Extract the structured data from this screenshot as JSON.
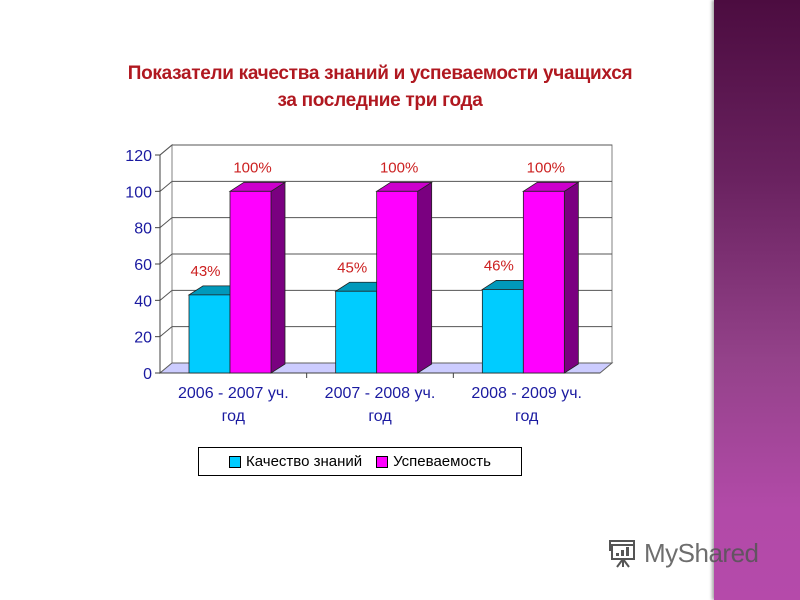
{
  "slide": {
    "title_line1": "Показатели качества знаний  и успеваемости учащихся",
    "title_line2": "за последние три года",
    "accent_colors": {
      "title": "#b01820",
      "side_band_top": "#4c0c40",
      "side_band_bottom": "#b54aaa"
    }
  },
  "watermark": {
    "icon": "presentation-board-icon",
    "text": "MyShared"
  },
  "legend": {
    "items": [
      {
        "label": "Качество знаний",
        "color": "#00ccff"
      },
      {
        "label": "Успеваемость",
        "color": "#ff00ff"
      }
    ]
  },
  "chart_data": {
    "type": "bar",
    "subtype": "3d-clustered-column",
    "title": "Показатели качества знаний  и успеваемости учащихся за последние три года",
    "categories": [
      "2006 - 2007 уч. год",
      "2007 - 2008 уч. год",
      "2008 - 2009 уч. год"
    ],
    "category_lines": [
      [
        "2006 - 2007 уч.",
        "год"
      ],
      [
        "2007 - 2008 уч.",
        "год"
      ],
      [
        "2008 - 2009 уч.",
        "год"
      ]
    ],
    "series": [
      {
        "name": "Качество знаний",
        "values": [
          43,
          45,
          46
        ],
        "labels": [
          "43%",
          "45%",
          "46%"
        ],
        "color": "#00ccff",
        "top_color": "#0099bb",
        "side_color": "#0088aa"
      },
      {
        "name": "Успеваемость",
        "values": [
          100,
          100,
          100
        ],
        "labels": [
          "100%",
          "100%",
          "100%"
        ],
        "color": "#ff00ff",
        "top_color": "#cc00cc",
        "side_color": "#7a0080"
      }
    ],
    "xlabel": "",
    "ylabel": "",
    "ylim": [
      0,
      120
    ],
    "yticks": [
      0,
      20,
      40,
      60,
      80,
      100,
      120
    ],
    "grid": true,
    "legend_position": "bottom",
    "data_label_color": "#cc2020",
    "axis_label_color": "#1a1aa0",
    "floor_color": "#ccccff"
  }
}
